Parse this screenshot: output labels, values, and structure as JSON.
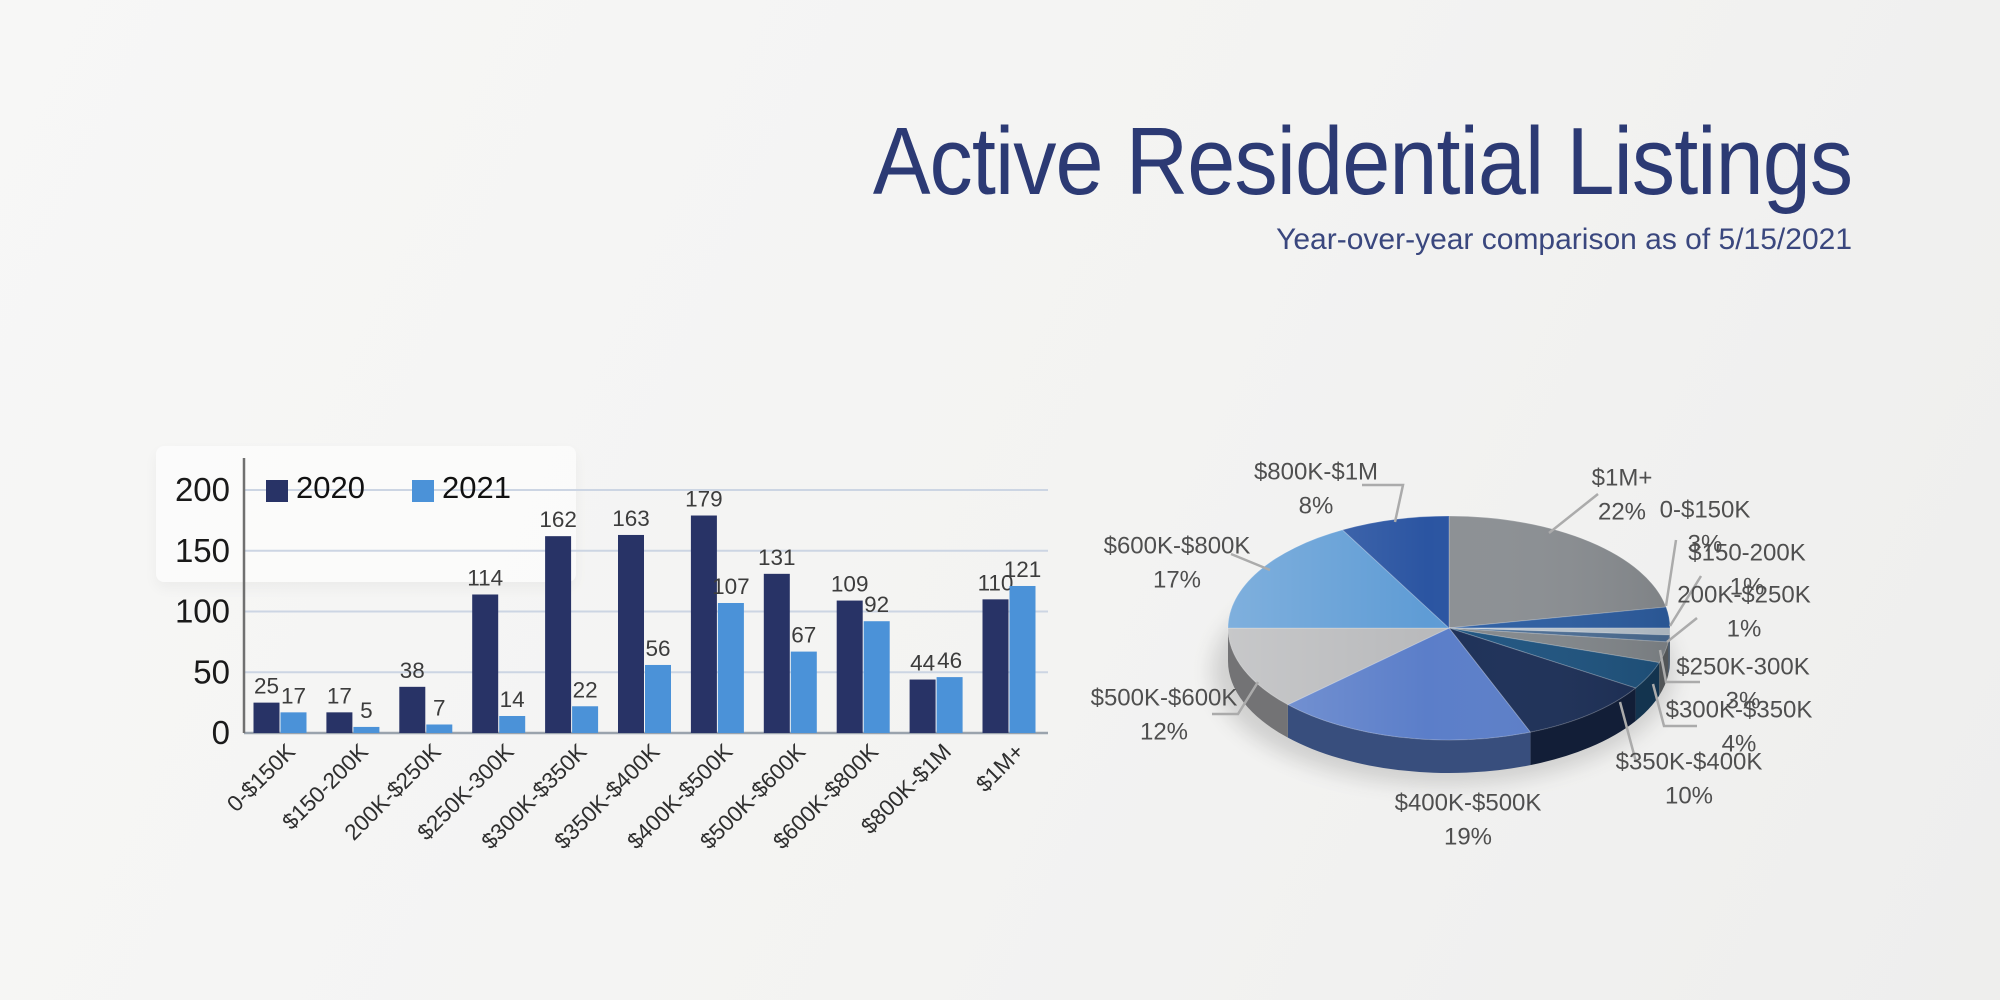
{
  "header": {
    "title": "Active Residential Listings",
    "subtitle": "Year-over-year comparison as of 5/15/2021"
  },
  "chart_data": [
    {
      "type": "bar",
      "title": "",
      "categories": [
        "0-$150K",
        "$150-200K",
        "200K-$250K",
        "$250K-300K",
        "$300K-$350K",
        "$350K-$400K",
        "$400K-$500K",
        "$500K-$600K",
        "$600K-$800K",
        "$800K-$1M",
        "$1M+"
      ],
      "series": [
        {
          "name": "2020",
          "color": "#283366",
          "values": [
            25,
            17,
            38,
            114,
            162,
            163,
            179,
            131,
            109,
            44,
            110
          ]
        },
        {
          "name": "2021",
          "color": "#4b92d8",
          "values": [
            17,
            5,
            7,
            14,
            22,
            56,
            107,
            67,
            92,
            46,
            121
          ]
        }
      ],
      "xlabel": "",
      "ylabel": "",
      "ylim": [
        0,
        200
      ],
      "yticks": [
        0,
        50,
        100,
        150,
        200
      ],
      "grid": true,
      "legend_position": "top-left",
      "gridline_color": "#ccd5e3",
      "axis_color": "#707070",
      "baseline_color": "#9aa3ad",
      "value_label_color": "#3c3c3c",
      "tick_label_color": "#1a1a1a"
    },
    {
      "type": "pie",
      "effect": "3d",
      "start_at_top_with_last_slice": true,
      "labels": [
        "0-$150K",
        "$150-200K",
        "200K-$250K",
        "$250K-300K",
        "$300K-$350K",
        "$350K-$400K",
        "$400K-$500K",
        "$500K-$600K",
        "$600K-$800K",
        "$800K-$1M",
        "$1M+"
      ],
      "values": [
        3,
        1,
        1,
        3,
        4,
        10,
        19,
        12,
        17,
        8,
        22
      ],
      "unit": "%",
      "colors": [
        "#2e5fa3",
        "#bcc7d1",
        "#4d6f96",
        "#84898d",
        "#1f5480",
        "#1d3058",
        "#5b7ec9",
        "#b9babc",
        "#5f9cd5",
        "#2b55a2",
        "#8c9094"
      ],
      "leader_line_color": "#ababab",
      "label_color": "#4f4f4f"
    }
  ]
}
